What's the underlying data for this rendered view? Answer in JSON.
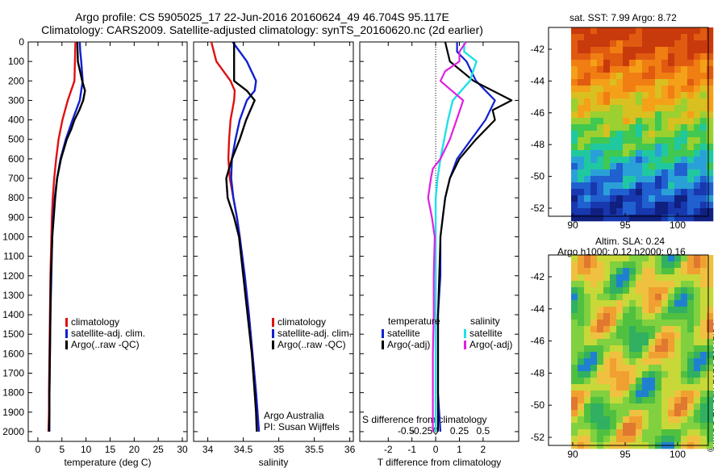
{
  "header": {
    "line1": "Argo profile: CS 5905025_17 22-Jun-2016 20160624_49 46.704S 95.117E",
    "line2": "Climatology: CARS2009. Satellite-adjusted climatology: synTS_20160620.nc (2d earlier)"
  },
  "panels": {
    "temperature": {
      "xlabel": "temperature (deg C)",
      "xticks": [
        "0",
        "5",
        "10",
        "15",
        "20",
        "25",
        "30"
      ],
      "legend": [
        "climatology",
        "satellite-adj. clim.",
        "Argo(..raw -QC)"
      ]
    },
    "salinity": {
      "xlabel": "salinity",
      "xticks": [
        "34",
        "34.5",
        "35",
        "35.5",
        "36"
      ],
      "legend": [
        "climatology",
        "satellite-adj. clim.",
        "Argo(..raw -QC)"
      ],
      "credit1": "Argo Australia",
      "credit2": "PI: Susan Wijffels"
    },
    "difference": {
      "xlabel": "T difference from climatology",
      "xticks": [
        "-2",
        "-1",
        "0",
        "1",
        "2"
      ],
      "top_label": "S difference from climatology",
      "top_ticks": [
        "-0.5",
        "-0.25",
        "0",
        "0.25",
        "0.5"
      ],
      "legend_temp_title": "temperature",
      "legend_sal_title": "salinity",
      "legend_temp": [
        "satellite",
        "Argo(-adj)"
      ],
      "legend_sal": [
        "satellite",
        "Argo(-adj)"
      ]
    },
    "depth_ticks": [
      "0",
      "100",
      "200",
      "300",
      "400",
      "500",
      "600",
      "700",
      "800",
      "900",
      "1000",
      "1100",
      "1200",
      "1300",
      "1400",
      "1500",
      "1600",
      "1700",
      "1800",
      "1900",
      "2000"
    ]
  },
  "maps": {
    "sst_title": "sat. SST: 7.99 Argo: 8.72",
    "sla_title1": "Altim. SLA: 0.24",
    "sla_title2": "Argo h1000: 0.12 h2000: 0.16",
    "lat_ticks": [
      "-42",
      "-44",
      "-46",
      "-48",
      "-50",
      "-52"
    ],
    "lon_ticks": [
      "90",
      "95",
      "100"
    ]
  },
  "stamp": "©IMOS 27-Jun-2016 20:41:54",
  "colors": {
    "climatology": "#e01010",
    "satellite": "#1020d0",
    "argo": "#000000",
    "sal_satellite": "#20e0e8",
    "sal_argo": "#e020e0"
  },
  "chart_data": [
    {
      "type": "line",
      "name": "temperature profile",
      "xlabel": "temperature (deg C)",
      "ylim": [
        2050,
        0
      ],
      "xlim": [
        -2,
        31
      ],
      "series": [
        {
          "name": "climatology",
          "depth": [
            0,
            100,
            200,
            300,
            400,
            500,
            600,
            700,
            800,
            900,
            1000,
            1200,
            1400,
            1600,
            1800,
            1900,
            2000
          ],
          "values": [
            7.8,
            7.7,
            7.6,
            6.2,
            5.1,
            4.3,
            3.8,
            3.4,
            3.1,
            2.9,
            2.8,
            2.6,
            2.5,
            2.4,
            2.3,
            2.3,
            2.2
          ]
        },
        {
          "name": "satellite-adj. clim.",
          "depth": [
            0,
            50,
            100,
            200,
            300,
            400,
            500,
            600,
            700,
            800,
            900,
            1000,
            1200,
            1400,
            1600,
            1800,
            1900,
            2000
          ],
          "values": [
            8.7,
            8.8,
            9.0,
            9.3,
            8.7,
            7.2,
            5.8,
            4.7,
            4.0,
            3.5,
            3.2,
            3.0,
            2.8,
            2.6,
            2.5,
            2.4,
            2.4,
            2.4
          ]
        },
        {
          "name": "Argo(..raw -QC)",
          "depth": [
            0,
            100,
            200,
            250,
            300,
            350,
            400,
            450,
            500,
            600,
            700,
            800,
            900,
            1000,
            1200,
            1400,
            1600,
            1800,
            1900,
            2000
          ],
          "values": [
            8.2,
            8.3,
            9.2,
            9.8,
            9.4,
            8.6,
            7.6,
            6.9,
            6.0,
            4.8,
            4.0,
            3.6,
            3.3,
            3.0,
            2.7,
            2.6,
            2.5,
            2.4,
            2.4,
            2.3
          ]
        }
      ]
    },
    {
      "type": "line",
      "name": "salinity profile",
      "xlabel": "salinity",
      "ylim": [
        2050,
        0
      ],
      "xlim": [
        33.8,
        36.05
      ],
      "series": [
        {
          "name": "climatology",
          "depth": [
            0,
            100,
            200,
            250,
            300,
            400,
            500,
            600,
            700,
            800,
            900,
            1000,
            1200,
            1400,
            1600,
            1800,
            1900,
            2000
          ],
          "values": [
            34.05,
            34.12,
            34.32,
            34.38,
            34.37,
            34.32,
            34.3,
            34.29,
            34.31,
            34.36,
            34.41,
            34.45,
            34.52,
            34.58,
            34.63,
            34.68,
            34.7,
            34.72
          ]
        },
        {
          "name": "satellite-adj. clim.",
          "depth": [
            0,
            100,
            200,
            250,
            300,
            400,
            500,
            600,
            700,
            800,
            900,
            1000,
            1200,
            1400,
            1600,
            1800,
            1900,
            2000
          ],
          "values": [
            34.35,
            34.55,
            34.68,
            34.66,
            34.55,
            34.45,
            34.39,
            34.34,
            34.33,
            34.36,
            34.41,
            34.45,
            34.52,
            34.58,
            34.63,
            34.68,
            34.7,
            34.72
          ]
        },
        {
          "name": "Argo(..raw -QC)",
          "depth": [
            0,
            100,
            150,
            200,
            250,
            300,
            400,
            500,
            600,
            700,
            800,
            900,
            1000,
            1200,
            1400,
            1600,
            1800,
            1900,
            2000
          ],
          "values": [
            34.37,
            34.37,
            34.37,
            34.37,
            34.55,
            34.66,
            34.54,
            34.45,
            34.34,
            34.26,
            34.28,
            34.37,
            34.44,
            34.5,
            34.56,
            34.62,
            34.66,
            34.68,
            34.69
          ]
        }
      ]
    },
    {
      "type": "line",
      "name": "difference from climatology",
      "xlabel": "T difference from climatology",
      "top_label": "S difference from climatology",
      "ylim": [
        2050,
        0
      ],
      "xlim": [
        -3.2,
        3.5
      ],
      "series": [
        {
          "name": "temperature satellite",
          "depth": [
            0,
            50,
            100,
            200,
            300,
            400,
            500,
            600,
            700,
            800,
            900,
            1000,
            1200,
            1400,
            1600,
            1800,
            2000
          ],
          "values": [
            0.9,
            0.9,
            1.3,
            1.7,
            2.5,
            2.1,
            1.5,
            0.9,
            0.6,
            0.4,
            0.3,
            0.2,
            0.2,
            0.1,
            0.1,
            0.1,
            0.2
          ]
        },
        {
          "name": "temperature Argo(-adj)",
          "depth": [
            0,
            50,
            100,
            200,
            300,
            350,
            400,
            500,
            600,
            700,
            800,
            900,
            1000,
            1200,
            1400,
            1600,
            1800,
            2000
          ],
          "values": [
            0.4,
            0.5,
            0.6,
            1.6,
            3.2,
            2.4,
            2.5,
            1.7,
            1.0,
            0.6,
            0.4,
            0.3,
            0.2,
            0.15,
            0.1,
            0.1,
            0.1,
            0.1
          ]
        },
        {
          "name": "salinity satellite",
          "depth": [
            0,
            50,
            100,
            200,
            300,
            400,
            500,
            600,
            700,
            800,
            900,
            1000,
            1200,
            1400,
            1600,
            1800,
            2000
          ],
          "values": [
            0.3,
            0.3,
            0.43,
            0.36,
            0.18,
            0.13,
            0.09,
            0.05,
            0.02,
            0.0,
            0.0,
            0.0,
            0.0,
            0.0,
            0.0,
            0.0,
            0.0
          ]
        },
        {
          "name": "salinity Argo(-adj)",
          "depth": [
            0,
            50,
            100,
            150,
            200,
            250,
            300,
            400,
            500,
            600,
            650,
            700,
            800,
            900,
            1000,
            1200,
            1400,
            1600,
            1800,
            2000
          ],
          "values": [
            0.32,
            0.25,
            0.25,
            0.1,
            0.05,
            0.17,
            0.29,
            0.22,
            0.15,
            0.05,
            -0.03,
            -0.05,
            -0.08,
            -0.04,
            -0.01,
            -0.02,
            -0.02,
            -0.03,
            -0.03,
            -0.03
          ]
        }
      ]
    }
  ]
}
